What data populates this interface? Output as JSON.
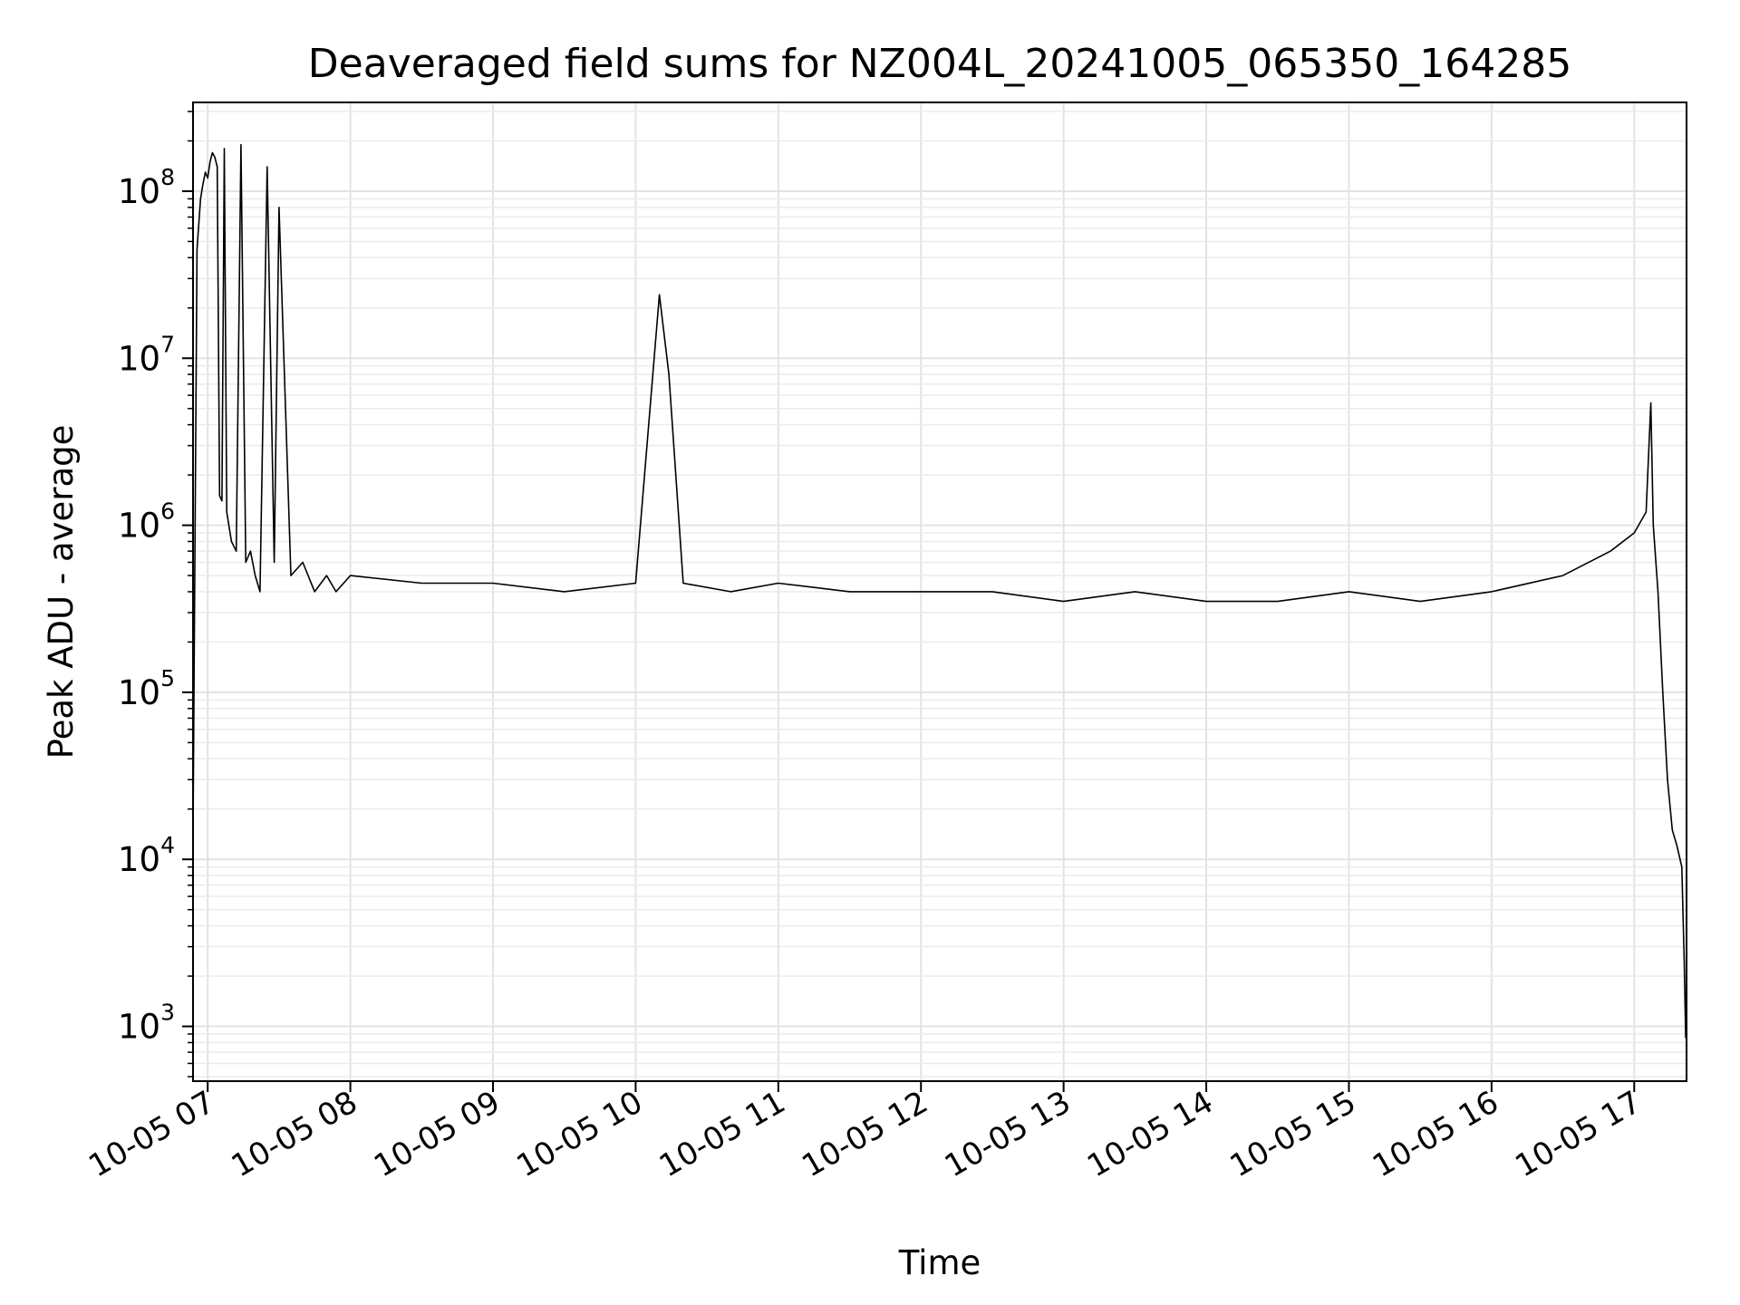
{
  "chart_data": {
    "type": "line",
    "title": "Deaveraged field sums for NZ004L_20241005_065350_164285",
    "xlabel": "Time",
    "ylabel": "Peak ADU - average",
    "yscale": "log",
    "ylim": [
      470,
      340000000
    ],
    "xlim": [
      "2024-10-05 06:53:50",
      "2024-10-05 17:22:00"
    ],
    "grid": true,
    "minor_grid": true,
    "x_ticks": [
      {
        "label": "10-05 07",
        "value": "2024-10-05 07:00"
      },
      {
        "label": "10-05 08",
        "value": "2024-10-05 08:00"
      },
      {
        "label": "10-05 09",
        "value": "2024-10-05 09:00"
      },
      {
        "label": "10-05 10",
        "value": "2024-10-05 10:00"
      },
      {
        "label": "10-05 11",
        "value": "2024-10-05 11:00"
      },
      {
        "label": "10-05 12",
        "value": "2024-10-05 12:00"
      },
      {
        "label": "10-05 13",
        "value": "2024-10-05 13:00"
      },
      {
        "label": "10-05 14",
        "value": "2024-10-05 14:00"
      },
      {
        "label": "10-05 15",
        "value": "2024-10-05 15:00"
      },
      {
        "label": "10-05 16",
        "value": "2024-10-05 16:00"
      },
      {
        "label": "10-05 17",
        "value": "2024-10-05 17:00"
      }
    ],
    "y_ticks": [
      {
        "value": 1000,
        "base": "10",
        "exp": "3"
      },
      {
        "value": 10000,
        "base": "10",
        "exp": "4"
      },
      {
        "value": 100000,
        "base": "10",
        "exp": "5"
      },
      {
        "value": 1000000,
        "base": "10",
        "exp": "6"
      },
      {
        "value": 10000000,
        "base": "10",
        "exp": "7"
      },
      {
        "value": 100000000,
        "base": "10",
        "exp": "8"
      }
    ],
    "series": [
      {
        "color": "#000000",
        "x": [
          "2024-10-05 06:53:50",
          "2024-10-05 06:54:30",
          "2024-10-05 06:55:30",
          "2024-10-05 06:57:00",
          "2024-10-05 06:58:00",
          "2024-10-05 06:59:00",
          "2024-10-05 07:00:00",
          "2024-10-05 07:01:00",
          "2024-10-05 07:02:00",
          "2024-10-05 07:03:00",
          "2024-10-05 07:04:00",
          "2024-10-05 07:05:00",
          "2024-10-05 07:06:00",
          "2024-10-05 07:07:00",
          "2024-10-05 07:08:00",
          "2024-10-05 07:10:00",
          "2024-10-05 07:12:00",
          "2024-10-05 07:14:00",
          "2024-10-05 07:16:00",
          "2024-10-05 07:18:00",
          "2024-10-05 07:20:00",
          "2024-10-05 07:22:00",
          "2024-10-05 07:25:00",
          "2024-10-05 07:28:00",
          "2024-10-05 07:30:00",
          "2024-10-05 07:35:00",
          "2024-10-05 07:40:00",
          "2024-10-05 07:45:00",
          "2024-10-05 07:50:00",
          "2024-10-05 07:54:00",
          "2024-10-05 08:00:00",
          "2024-10-05 08:30:00",
          "2024-10-05 09:00:00",
          "2024-10-05 09:30:00",
          "2024-10-05 10:00:00",
          "2024-10-05 10:10:00",
          "2024-10-05 10:14:00",
          "2024-10-05 10:20:00",
          "2024-10-05 10:40:00",
          "2024-10-05 11:00:00",
          "2024-10-05 11:30:00",
          "2024-10-05 12:00:00",
          "2024-10-05 12:30:00",
          "2024-10-05 13:00:00",
          "2024-10-05 13:30:00",
          "2024-10-05 14:00:00",
          "2024-10-05 14:30:00",
          "2024-10-05 15:00:00",
          "2024-10-05 15:30:00",
          "2024-10-05 16:00:00",
          "2024-10-05 16:30:00",
          "2024-10-05 16:50:00",
          "2024-10-05 17:00:00",
          "2024-10-05 17:05:00",
          "2024-10-05 17:07:00",
          "2024-10-05 17:08:00",
          "2024-10-05 17:10:00",
          "2024-10-05 17:12:00",
          "2024-10-05 17:14:00",
          "2024-10-05 17:16:00",
          "2024-10-05 17:18:00",
          "2024-10-05 17:20:00",
          "2024-10-05 17:21:00",
          "2024-10-05 17:21:40"
        ],
        "y": [
          14000,
          340000,
          45000000,
          90000000,
          110000000,
          130000000,
          120000000,
          150000000,
          170000000,
          160000000,
          140000000,
          1500000,
          1400000,
          180000000,
          1200000,
          800000,
          700000,
          190000000,
          600000,
          700000,
          500000,
          400000,
          140000000,
          600000,
          80000000,
          500000,
          600000,
          400000,
          500000,
          400000,
          500000,
          450000,
          450000,
          400000,
          450000,
          24000000,
          8000000,
          450000,
          400000,
          450000,
          400000,
          400000,
          400000,
          350000,
          400000,
          350000,
          350000,
          400000,
          350000,
          400000,
          500000,
          700000,
          900000,
          1200000,
          5400000,
          1000000,
          400000,
          100000,
          30000,
          15000,
          12000,
          9000,
          2500,
          850
        ]
      }
    ]
  }
}
